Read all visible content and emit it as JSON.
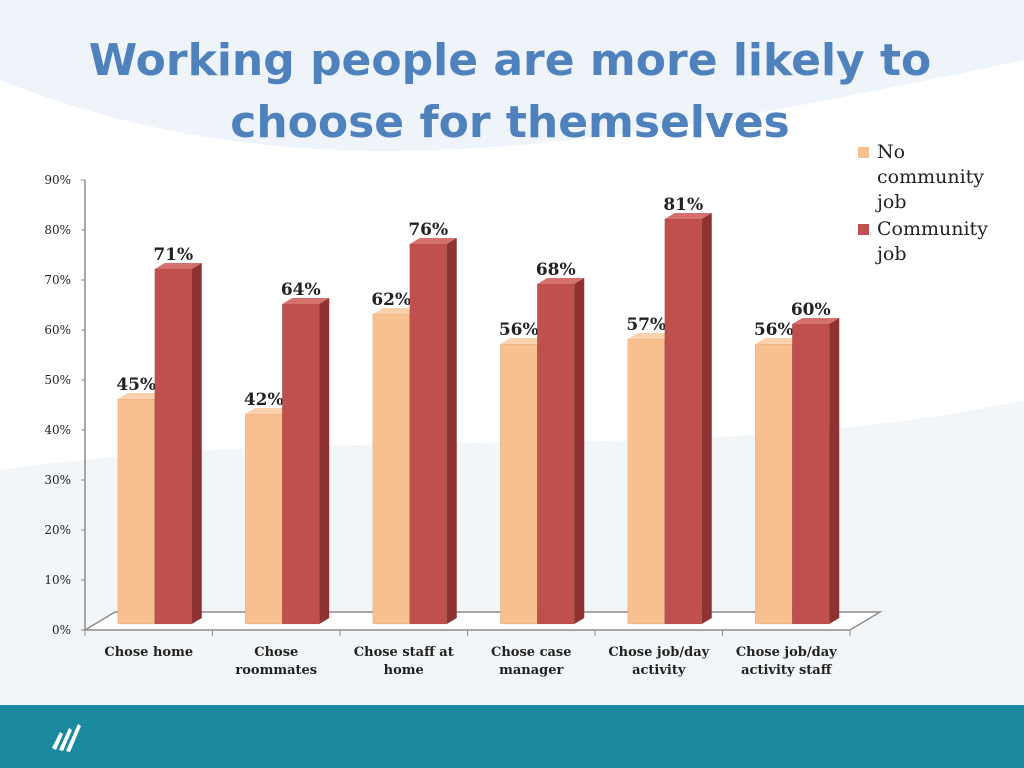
{
  "slide": {
    "title": "Working people are more likely to choose for themselves",
    "footer_logo": "logo-mark"
  },
  "colors": {
    "series_no_job": "#f9c08f",
    "series_job": "#c0504d",
    "title": "#4f81bd",
    "footer": "#1b8aa0"
  },
  "chart_data": {
    "type": "bar",
    "title": "Working people are more likely to choose for themselves",
    "categories": [
      "Chose home",
      "Chose roommates",
      "Chose staff at home",
      "Chose case manager",
      "Chose job/day activity",
      "Chose job/day activity staff"
    ],
    "series": [
      {
        "name": "No community job",
        "values": [
          45,
          42,
          62,
          56,
          57,
          56
        ],
        "labels": [
          "45%",
          "42%",
          "62%",
          "56%",
          "57%",
          "56%"
        ]
      },
      {
        "name": "Community job",
        "values": [
          71,
          64,
          76,
          68,
          81,
          60
        ],
        "labels": [
          "71%",
          "64%",
          "76%",
          "68%",
          "81%",
          "60%"
        ]
      }
    ],
    "yticks": [
      "0%",
      "10%",
      "20%",
      "30%",
      "40%",
      "50%",
      "60%",
      "70%",
      "80%",
      "90%"
    ],
    "ylim": [
      0,
      90
    ],
    "legend": "right",
    "grid": false,
    "style": "3d"
  }
}
